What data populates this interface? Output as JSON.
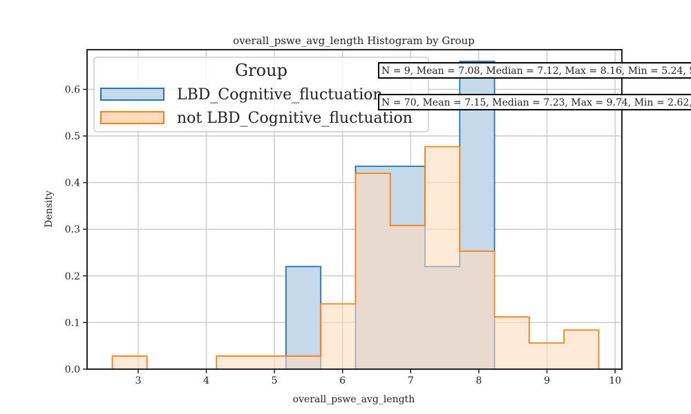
{
  "chart_data": {
    "type": "histogram",
    "title": "overall_pswe_avg_length Histogram by Group",
    "xlabel": "overall_pswe_avg_length",
    "ylabel": "Density",
    "xlim": [
      2.25,
      10.1
    ],
    "ylim": [
      0,
      0.685
    ],
    "x_ticks": [
      "3",
      "4",
      "5",
      "6",
      "7",
      "8",
      "9",
      "10"
    ],
    "y_ticks": [
      "0.0",
      "0.1",
      "0.2",
      "0.3",
      "0.4",
      "0.5",
      "0.6"
    ],
    "grid": true,
    "legend": {
      "title": "Group",
      "position": "top-left"
    },
    "bin_edges": [
      2.62,
      3.13,
      3.64,
      4.15,
      4.66,
      5.17,
      5.68,
      6.19,
      6.7,
      7.21,
      7.72,
      8.23,
      8.74,
      9.25,
      9.76
    ],
    "series": [
      {
        "name": "LBD_Cognitive_fluctuation",
        "color": "#1f77b4",
        "fill": "#c5d9ea",
        "values": [
          0,
          0,
          0,
          0,
          0,
          0.22,
          0,
          0.435,
          0.435,
          0.22,
          0.66,
          0,
          0,
          0
        ]
      },
      {
        "name": "not LBD_Cognitive_fluctuation",
        "color": "#ff7f0e",
        "fill": "#ffdbbd",
        "values": [
          0.028,
          0,
          0,
          0.028,
          0.028,
          0.028,
          0.14,
          0.42,
          0.308,
          0.477,
          0.253,
          0.112,
          0.056,
          0.084
        ]
      }
    ],
    "annotations": [
      "N = 9, Mean = 7.08, Median = 7.12, Max = 8.16, Min = 5.24, S",
      "N = 70, Mean = 7.15, Median = 7.23, Max = 9.74, Min = 2.62,"
    ]
  }
}
